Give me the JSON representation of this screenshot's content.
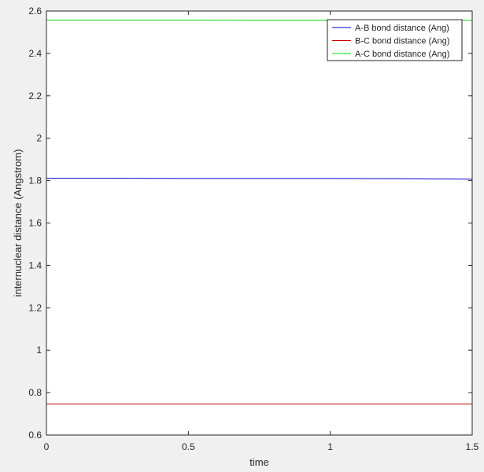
{
  "chart_data": {
    "type": "line",
    "title": "",
    "xlabel": "time",
    "ylabel": "internuclear distance (Angstrom)",
    "xlim": [
      0,
      1.5
    ],
    "ylim": [
      0.6,
      2.6
    ],
    "xticks": [
      0,
      0.5,
      1,
      1.5
    ],
    "xtick_labels": [
      "0",
      "0.5",
      "1",
      "1.5"
    ],
    "yticks": [
      0.6,
      0.8,
      1.0,
      1.2,
      1.4,
      1.6,
      1.8,
      2.0,
      2.2,
      2.4,
      2.6
    ],
    "ytick_labels": [
      "0.6",
      "0.8",
      "1",
      "1.2",
      "1.4",
      "1.6",
      "1.8",
      "2",
      "2.2",
      "2.4",
      "2.6"
    ],
    "grid": false,
    "legend_position": "top-right",
    "series": [
      {
        "name": "A-B bond distance (Ang)",
        "color": "#0000cc",
        "x": [
          0,
          0.25,
          0.5,
          0.75,
          1.0,
          1.25,
          1.5
        ],
        "y": [
          1.811,
          1.811,
          1.81,
          1.81,
          1.81,
          1.809,
          1.807
        ]
      },
      {
        "name": "B-C bond distance (Ang)",
        "color": "#cc0000",
        "x": [
          0,
          0.25,
          0.5,
          0.75,
          1.0,
          1.25,
          1.5
        ],
        "y": [
          0.746,
          0.746,
          0.746,
          0.746,
          0.746,
          0.746,
          0.746
        ]
      },
      {
        "name": "A-C bond distance (Ang)",
        "color": "#00e000",
        "x": [
          0,
          0.25,
          0.5,
          0.75,
          1.0,
          1.25,
          1.5
        ],
        "y": [
          2.557,
          2.557,
          2.557,
          2.556,
          2.556,
          2.556,
          2.556
        ]
      }
    ]
  }
}
